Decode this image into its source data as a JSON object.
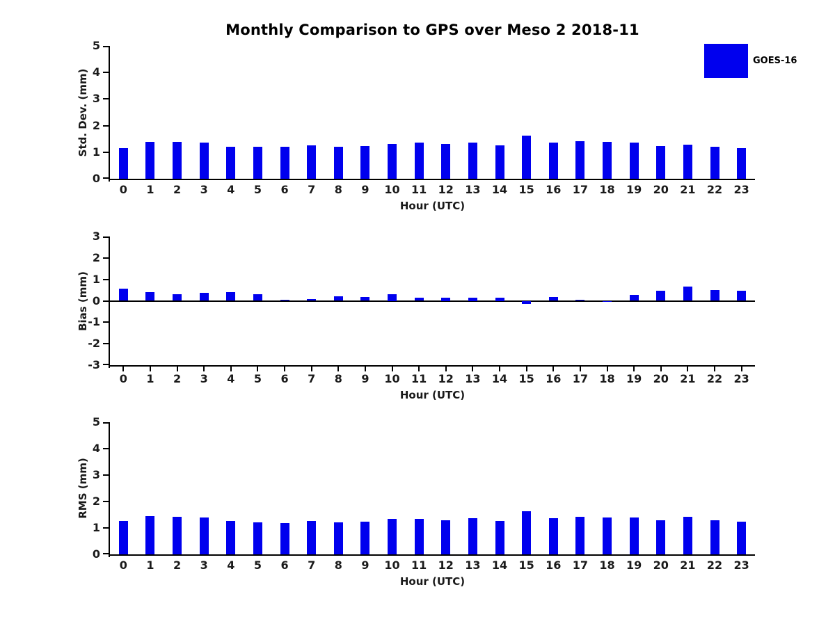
{
  "title": "Monthly Comparison to GPS over Meso 2 2018-11",
  "legend": {
    "label": "GOES-16",
    "swatch_color": "#0000EE"
  },
  "colors": {
    "bar": "#0000EE",
    "axis": "#000000",
    "background": "#FFFFFF",
    "text": "#1A1A1A"
  },
  "chart_data": [
    {
      "type": "bar",
      "title": "Monthly Comparison to GPS over Meso 2 2018-11",
      "xlabel": "Hour (UTC)",
      "ylabel": "Std. Dev. (mm)",
      "ylim": [
        0,
        5
      ],
      "yticks": [
        0,
        1,
        2,
        3,
        4,
        5
      ],
      "grid": false,
      "legend_position": "top-right-outside",
      "categories": [
        "0",
        "1",
        "2",
        "3",
        "4",
        "5",
        "6",
        "7",
        "8",
        "9",
        "10",
        "11",
        "12",
        "13",
        "14",
        "15",
        "16",
        "17",
        "18",
        "19",
        "20",
        "21",
        "22",
        "23"
      ],
      "series": [
        {
          "name": "GOES-16",
          "values": [
            1.15,
            1.4,
            1.38,
            1.35,
            1.2,
            1.2,
            1.2,
            1.25,
            1.2,
            1.22,
            1.3,
            1.35,
            1.3,
            1.35,
            1.25,
            1.63,
            1.35,
            1.42,
            1.4,
            1.37,
            1.22,
            1.27,
            1.2,
            1.14
          ]
        }
      ]
    },
    {
      "type": "bar",
      "title": "",
      "xlabel": "Hour (UTC)",
      "ylabel": "Bias (mm)",
      "ylim": [
        -3,
        3
      ],
      "yticks": [
        -3,
        -2,
        -1,
        0,
        1,
        2,
        3
      ],
      "grid": false,
      "legend_position": "none",
      "categories": [
        "0",
        "1",
        "2",
        "3",
        "4",
        "5",
        "6",
        "7",
        "8",
        "9",
        "10",
        "11",
        "12",
        "13",
        "14",
        "15",
        "16",
        "17",
        "18",
        "19",
        "20",
        "21",
        "22",
        "23"
      ],
      "series": [
        {
          "name": "GOES-16",
          "values": [
            0.58,
            0.4,
            0.31,
            0.36,
            0.4,
            0.31,
            0.05,
            0.07,
            0.22,
            0.19,
            0.3,
            0.16,
            0.15,
            0.15,
            0.15,
            -0.15,
            0.17,
            0.05,
            -0.05,
            0.28,
            0.47,
            0.66,
            0.5,
            0.47
          ]
        }
      ]
    },
    {
      "type": "bar",
      "title": "",
      "xlabel": "Hour (UTC)",
      "ylabel": "RMS (mm)",
      "ylim": [
        0,
        5
      ],
      "yticks": [
        0,
        1,
        2,
        3,
        4,
        5
      ],
      "grid": false,
      "legend_position": "none",
      "categories": [
        "0",
        "1",
        "2",
        "3",
        "4",
        "5",
        "6",
        "7",
        "8",
        "9",
        "10",
        "11",
        "12",
        "13",
        "14",
        "15",
        "16",
        "17",
        "18",
        "19",
        "20",
        "21",
        "22",
        "23"
      ],
      "series": [
        {
          "name": "GOES-16",
          "values": [
            1.27,
            1.45,
            1.43,
            1.4,
            1.27,
            1.22,
            1.19,
            1.27,
            1.22,
            1.25,
            1.35,
            1.35,
            1.28,
            1.37,
            1.26,
            1.62,
            1.36,
            1.41,
            1.39,
            1.39,
            1.28,
            1.42,
            1.28,
            1.24
          ]
        }
      ]
    }
  ]
}
